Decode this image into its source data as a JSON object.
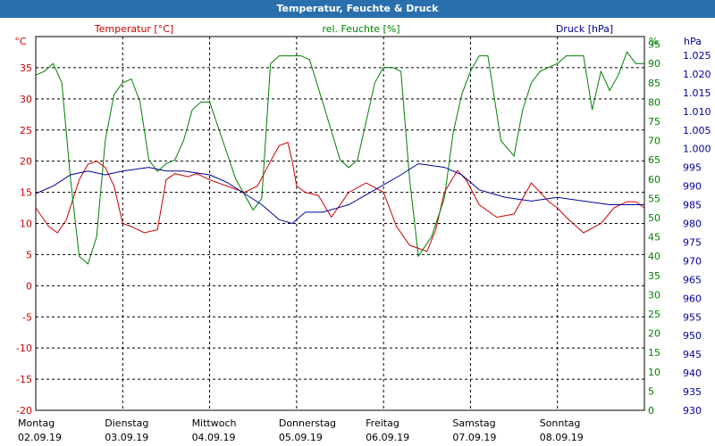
{
  "window": {
    "title": "Temperatur, Feuchte & Druck"
  },
  "colors": {
    "temperature": "#cc0000",
    "humidity": "#008000",
    "pressure": "#000099",
    "titlebar": "#2a6fad"
  },
  "chart_data": {
    "type": "line",
    "title": "Temperatur, Feuchte & Druck",
    "legend": {
      "temperature": "Temperatur [°C]",
      "humidity": "rel. Feuchte [%]",
      "pressure": "Druck [hPa]"
    },
    "axes": {
      "left": {
        "unit": "°C",
        "min": -20,
        "max": 40,
        "ticks": [
          "35",
          "30",
          "25",
          "20",
          "15",
          "10",
          "5",
          "0",
          "-5",
          "-10",
          "-15",
          "-20"
        ],
        "tick_values": [
          35,
          30,
          25,
          20,
          15,
          10,
          5,
          0,
          -5,
          -10,
          -15,
          -20
        ]
      },
      "humidity": {
        "unit": "%",
        "min": 0,
        "max": 97,
        "ticks": [
          "95",
          "90",
          "85",
          "80",
          "75",
          "70",
          "65",
          "60",
          "55",
          "50",
          "45",
          "40",
          "35",
          "30",
          "25",
          "20",
          "15",
          "10",
          "5",
          "0"
        ],
        "tick_values": [
          95,
          90,
          85,
          80,
          75,
          70,
          65,
          60,
          55,
          50,
          45,
          40,
          35,
          30,
          25,
          20,
          15,
          10,
          5,
          0
        ]
      },
      "pressure": {
        "unit": "hPa",
        "min": 930,
        "max": 1030,
        "ticks": [
          "1.025",
          "1.020",
          "1.015",
          "1.010",
          "1.005",
          "1.000",
          "995",
          "990",
          "985",
          "980",
          "975",
          "970",
          "965",
          "960",
          "955",
          "950",
          "945",
          "940",
          "935",
          "930"
        ],
        "tick_values": [
          1025,
          1020,
          1015,
          1010,
          1005,
          1000,
          995,
          990,
          985,
          980,
          975,
          970,
          965,
          960,
          955,
          950,
          945,
          940,
          935,
          930
        ]
      }
    },
    "x_days": [
      {
        "day": "Montag",
        "date": "02.09.19"
      },
      {
        "day": "Dienstag",
        "date": "03.09.19"
      },
      {
        "day": "Mittwoch",
        "date": "04.09.19"
      },
      {
        "day": "Donnerstag",
        "date": "05.09.19"
      },
      {
        "day": "Freitag",
        "date": "06.09.19"
      },
      {
        "day": "Samstag",
        "date": "07.09.19"
      },
      {
        "day": "Sonntag",
        "date": "08.09.19"
      }
    ],
    "x_range": [
      0,
      7
    ],
    "series": [
      {
        "name": "Temperatur [°C]",
        "axis": "left",
        "color": "#cc0000",
        "x": [
          0,
          0.15,
          0.25,
          0.35,
          0.5,
          0.6,
          0.7,
          0.8,
          0.9,
          1.0,
          1.1,
          1.25,
          1.4,
          1.5,
          1.6,
          1.75,
          1.85,
          2.0,
          2.2,
          2.4,
          2.55,
          2.7,
          2.8,
          2.9,
          2.95,
          3.0,
          3.1,
          3.25,
          3.4,
          3.6,
          3.8,
          4.0,
          4.15,
          4.3,
          4.5,
          4.6,
          4.7,
          4.85,
          4.95,
          5.1,
          5.3,
          5.5,
          5.7,
          5.9,
          6.0,
          6.1,
          6.3,
          6.5,
          6.65,
          6.8,
          6.9,
          7.0
        ],
        "y": [
          12.5,
          9.5,
          8.5,
          10.5,
          17,
          19.5,
          20,
          19,
          16,
          10,
          9.5,
          8.5,
          9,
          17,
          18,
          17.5,
          18,
          17,
          16,
          15,
          16,
          20,
          22.5,
          23,
          20,
          16,
          15,
          14.5,
          11,
          15,
          16.5,
          15,
          9.5,
          6.5,
          5.5,
          9,
          15,
          18.5,
          17,
          13,
          11,
          11.5,
          16.5,
          13.5,
          12.5,
          11,
          8.5,
          10,
          12.5,
          13.5,
          13.5,
          12.5
        ]
      },
      {
        "name": "rel. Feuchte [%]",
        "axis": "humidity",
        "color": "#008000",
        "x": [
          0,
          0.1,
          0.2,
          0.3,
          0.4,
          0.5,
          0.6,
          0.7,
          0.8,
          0.9,
          1.0,
          1.1,
          1.2,
          1.3,
          1.4,
          1.5,
          1.6,
          1.7,
          1.8,
          1.9,
          2.0,
          2.15,
          2.3,
          2.5,
          2.6,
          2.7,
          2.8,
          2.9,
          3.0,
          3.05,
          3.15,
          3.3,
          3.5,
          3.6,
          3.7,
          3.8,
          3.9,
          4.0,
          4.1,
          4.2,
          4.3,
          4.4,
          4.55,
          4.7,
          4.8,
          4.9,
          5.0,
          5.1,
          5.2,
          5.35,
          5.5,
          5.6,
          5.7,
          5.8,
          5.9,
          6.0,
          6.1,
          6.2,
          6.3,
          6.4,
          6.5,
          6.6,
          6.7,
          6.8,
          6.9,
          7.0
        ],
        "y": [
          87,
          88,
          90,
          85,
          60,
          40,
          38,
          45,
          70,
          82,
          85,
          86,
          80,
          65,
          62,
          64,
          65,
          70,
          78,
          80,
          80,
          70,
          60,
          52,
          55,
          90,
          92,
          92,
          92,
          92,
          91,
          80,
          65,
          63,
          65,
          75,
          85,
          89,
          89,
          88,
          60,
          40,
          45,
          55,
          72,
          82,
          88,
          92,
          92,
          70,
          66,
          78,
          85,
          88,
          89,
          90,
          92,
          92,
          92,
          78,
          88,
          83,
          87,
          93,
          90,
          90
        ]
      },
      {
        "name": "Druck [hPa]",
        "axis": "pressure",
        "color": "#000099",
        "x": [
          0,
          0.2,
          0.4,
          0.6,
          0.8,
          1.0,
          1.3,
          1.5,
          1.7,
          2.0,
          2.2,
          2.4,
          2.6,
          2.8,
          2.95,
          3.1,
          3.3,
          3.6,
          3.9,
          4.2,
          4.4,
          4.7,
          4.9,
          5.1,
          5.4,
          5.7,
          6.0,
          6.3,
          6.6,
          6.8,
          7.0
        ],
        "y": [
          988,
          990,
          993,
          994,
          993,
          994,
          995,
          994,
          994,
          993,
          991,
          988,
          985,
          981,
          980,
          983,
          983,
          985,
          989,
          993,
          996,
          995,
          993,
          989,
          987,
          986,
          987,
          986,
          985,
          985,
          985
        ]
      }
    ]
  }
}
